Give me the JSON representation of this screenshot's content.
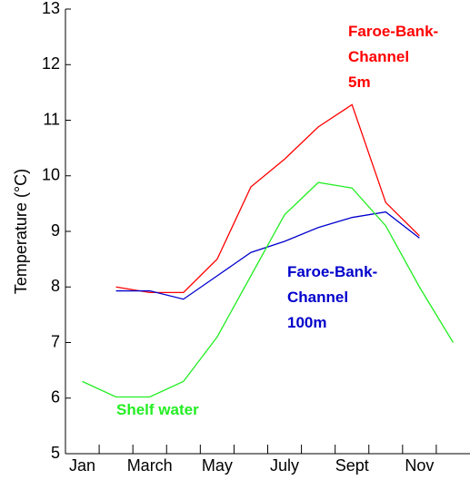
{
  "chart_data": {
    "type": "line",
    "y_label": "Temperature (°C)",
    "categories": [
      "Jan",
      null,
      "March",
      null,
      "May",
      null,
      "July",
      null,
      "Sept",
      null,
      "Nov",
      null
    ],
    "series": [
      {
        "name": "Faroe-Bank-\nChannel\n5m",
        "color": "#ff0000",
        "values": [
          null,
          8.0,
          7.9,
          7.9,
          8.5,
          9.8,
          10.3,
          10.88,
          11.28,
          9.52,
          8.92,
          null
        ]
      },
      {
        "name": "Faroe-Bank-\nChannel\n100m",
        "color": "#0000cc",
        "values": [
          null,
          7.93,
          7.93,
          7.78,
          8.2,
          8.62,
          8.82,
          9.07,
          9.25,
          9.35,
          8.88,
          null
        ]
      },
      {
        "name": "Shelf water",
        "color": "#22ee22",
        "values": [
          6.3,
          6.02,
          6.02,
          6.3,
          7.1,
          8.2,
          9.3,
          9.88,
          9.78,
          9.1,
          8.0,
          7.0
        ]
      }
    ],
    "ylim": [
      5,
      13
    ],
    "yticks": [
      5,
      6,
      7,
      8,
      9,
      10,
      11,
      12,
      13
    ],
    "grid": false
  }
}
